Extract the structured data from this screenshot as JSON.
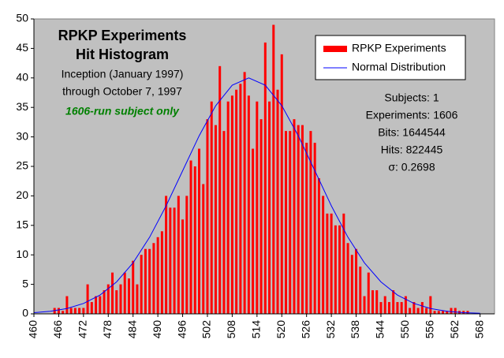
{
  "chart_data": {
    "type": "histogram",
    "title": [
      "RPKP Experiments",
      "Hit Histogram"
    ],
    "subtitle": [
      "Inception (January 1997)",
      "through October 7, 1997"
    ],
    "note": "1606-run subject only",
    "stats": [
      "Subjects: 1",
      "Experiments: 1606",
      "Bits: 1644544",
      "Hits: 822445",
      "σ: 0.2698"
    ],
    "series": [
      {
        "name": "RPKP Experiments",
        "type": "bar",
        "color": "#ff0000",
        "x": [
          465,
          466,
          467,
          468,
          469,
          470,
          471,
          472,
          473,
          474,
          475,
          476,
          477,
          478,
          479,
          480,
          481,
          482,
          483,
          484,
          485,
          486,
          487,
          488,
          489,
          490,
          491,
          492,
          493,
          494,
          495,
          496,
          497,
          498,
          499,
          500,
          501,
          502,
          503,
          504,
          505,
          506,
          507,
          508,
          509,
          510,
          511,
          512,
          513,
          514,
          515,
          516,
          517,
          518,
          519,
          520,
          521,
          522,
          523,
          524,
          525,
          526,
          527,
          528,
          529,
          530,
          531,
          532,
          533,
          534,
          535,
          536,
          537,
          538,
          539,
          540,
          541,
          542,
          543,
          544,
          545,
          546,
          547,
          548,
          549,
          550,
          551,
          552,
          553,
          554,
          555,
          556,
          557,
          558,
          559,
          560,
          561,
          562,
          563,
          564,
          565
        ],
        "values": [
          1,
          1,
          0.5,
          3,
          1,
          1,
          1,
          1,
          5,
          2,
          3,
          3,
          4,
          5,
          7,
          4,
          5,
          7,
          6,
          9,
          5,
          10,
          11,
          11,
          12,
          13,
          14,
          20,
          18,
          18,
          20,
          16,
          20,
          26,
          25,
          28,
          22,
          33,
          36,
          32,
          42,
          31,
          36,
          37,
          38,
          39,
          41,
          37,
          28,
          36,
          33,
          46,
          36,
          49,
          38,
          44,
          31,
          31,
          33,
          32,
          32,
          29,
          31,
          29,
          23,
          20,
          17,
          17,
          15,
          15,
          17,
          12,
          10,
          11,
          8,
          3,
          7,
          4,
          4,
          2,
          3,
          2,
          4,
          2,
          2,
          3,
          1,
          2,
          1,
          2,
          1,
          3,
          0.5,
          0.5,
          0.5,
          0.5,
          1,
          1,
          0.5,
          0.5,
          0.5
        ]
      },
      {
        "name": "Normal Distribution",
        "type": "line",
        "color": "#0000ff",
        "x": [
          460,
          464,
          468,
          472,
          476,
          480,
          484,
          488,
          492,
          496,
          500,
          504,
          508,
          512,
          516,
          520,
          524,
          528,
          532,
          536,
          540,
          544,
          548,
          552,
          556,
          560,
          564,
          568
        ],
        "values": [
          0.2,
          0.44,
          0.91,
          1.76,
          3.18,
          5.41,
          8.65,
          12.99,
          18.31,
          24.26,
          30.19,
          35.3,
          38.77,
          40,
          38.77,
          35.3,
          30.19,
          24.26,
          18.31,
          12.99,
          8.65,
          5.41,
          3.18,
          1.76,
          0.91,
          0.44,
          0.2,
          0.09
        ]
      }
    ],
    "xlim": [
      460,
      571.5
    ],
    "xticks": [
      460,
      466,
      472,
      478,
      484,
      490,
      496,
      502,
      508,
      514,
      520,
      526,
      532,
      538,
      544,
      550,
      556,
      562,
      568
    ],
    "ylim": [
      0,
      50
    ],
    "yticks": [
      0,
      5,
      10,
      15,
      20,
      25,
      30,
      35,
      40,
      45,
      50
    ],
    "legend": "top-right"
  }
}
